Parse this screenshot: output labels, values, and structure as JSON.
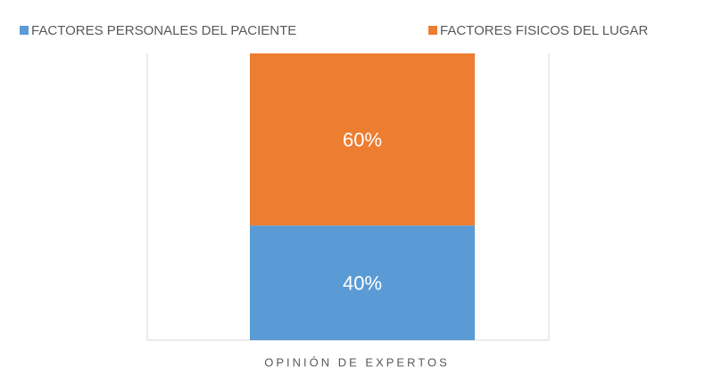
{
  "chart_data": {
    "type": "bar",
    "stacked": true,
    "categories": [
      "OPINIÓN DE EXPERTOS"
    ],
    "series": [
      {
        "name": "FACTORES PERSONALES DEL PACIENTE",
        "color": "#5b9bd5",
        "values": [
          40
        ],
        "value_labels": [
          "40%"
        ]
      },
      {
        "name": "FACTORES FISICOS DEL LUGAR",
        "color": "#ed7d31",
        "values": [
          60
        ],
        "value_labels": [
          "60%"
        ]
      }
    ]
  }
}
